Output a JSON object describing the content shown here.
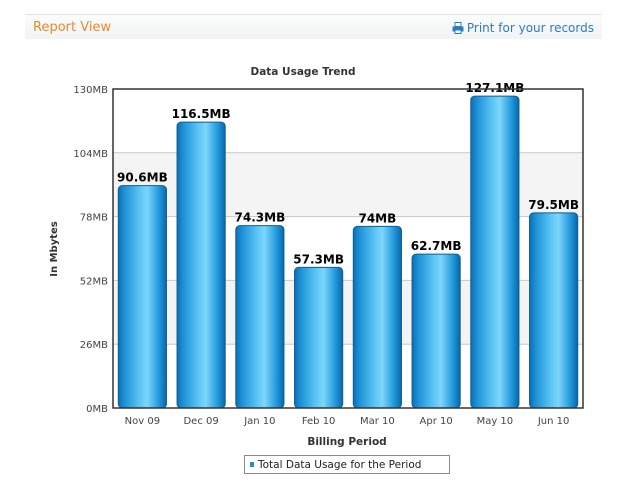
{
  "header": {
    "title": "Report View",
    "print_label": "Print for your records",
    "print_icon": "printer-icon"
  },
  "colors": {
    "accent": "#e8892c",
    "link": "#2f7bbf",
    "bar": "#1c8fd6"
  },
  "legend": {
    "label": "Total Data Usage for the Period"
  },
  "chart_data": {
    "type": "bar",
    "title": "Data Usage Trend",
    "xlabel": "Billing Period",
    "ylabel": "In Mbytes",
    "categories": [
      "Nov 09",
      "Dec 09",
      "Jan 10",
      "Feb 10",
      "Mar 10",
      "Apr 10",
      "May 10",
      "Jun 10"
    ],
    "series": [
      {
        "name": "Total Data Usage for the Period",
        "values": [
          90.6,
          116.5,
          74.3,
          57.3,
          74,
          62.7,
          127.1,
          79.5
        ],
        "labels": [
          "90.6MB",
          "116.5MB",
          "74.3MB",
          "57.3MB",
          "74MB",
          "62.7MB",
          "127.1MB",
          "79.5MB"
        ]
      }
    ],
    "ylim": [
      0,
      130
    ],
    "yticks": [
      0,
      26,
      52,
      78,
      104,
      130
    ],
    "ytick_labels": [
      "0MB",
      "26MB",
      "52MB",
      "78MB",
      "104MB",
      "130MB"
    ],
    "grid": true,
    "legend_position": "bottom-center"
  }
}
